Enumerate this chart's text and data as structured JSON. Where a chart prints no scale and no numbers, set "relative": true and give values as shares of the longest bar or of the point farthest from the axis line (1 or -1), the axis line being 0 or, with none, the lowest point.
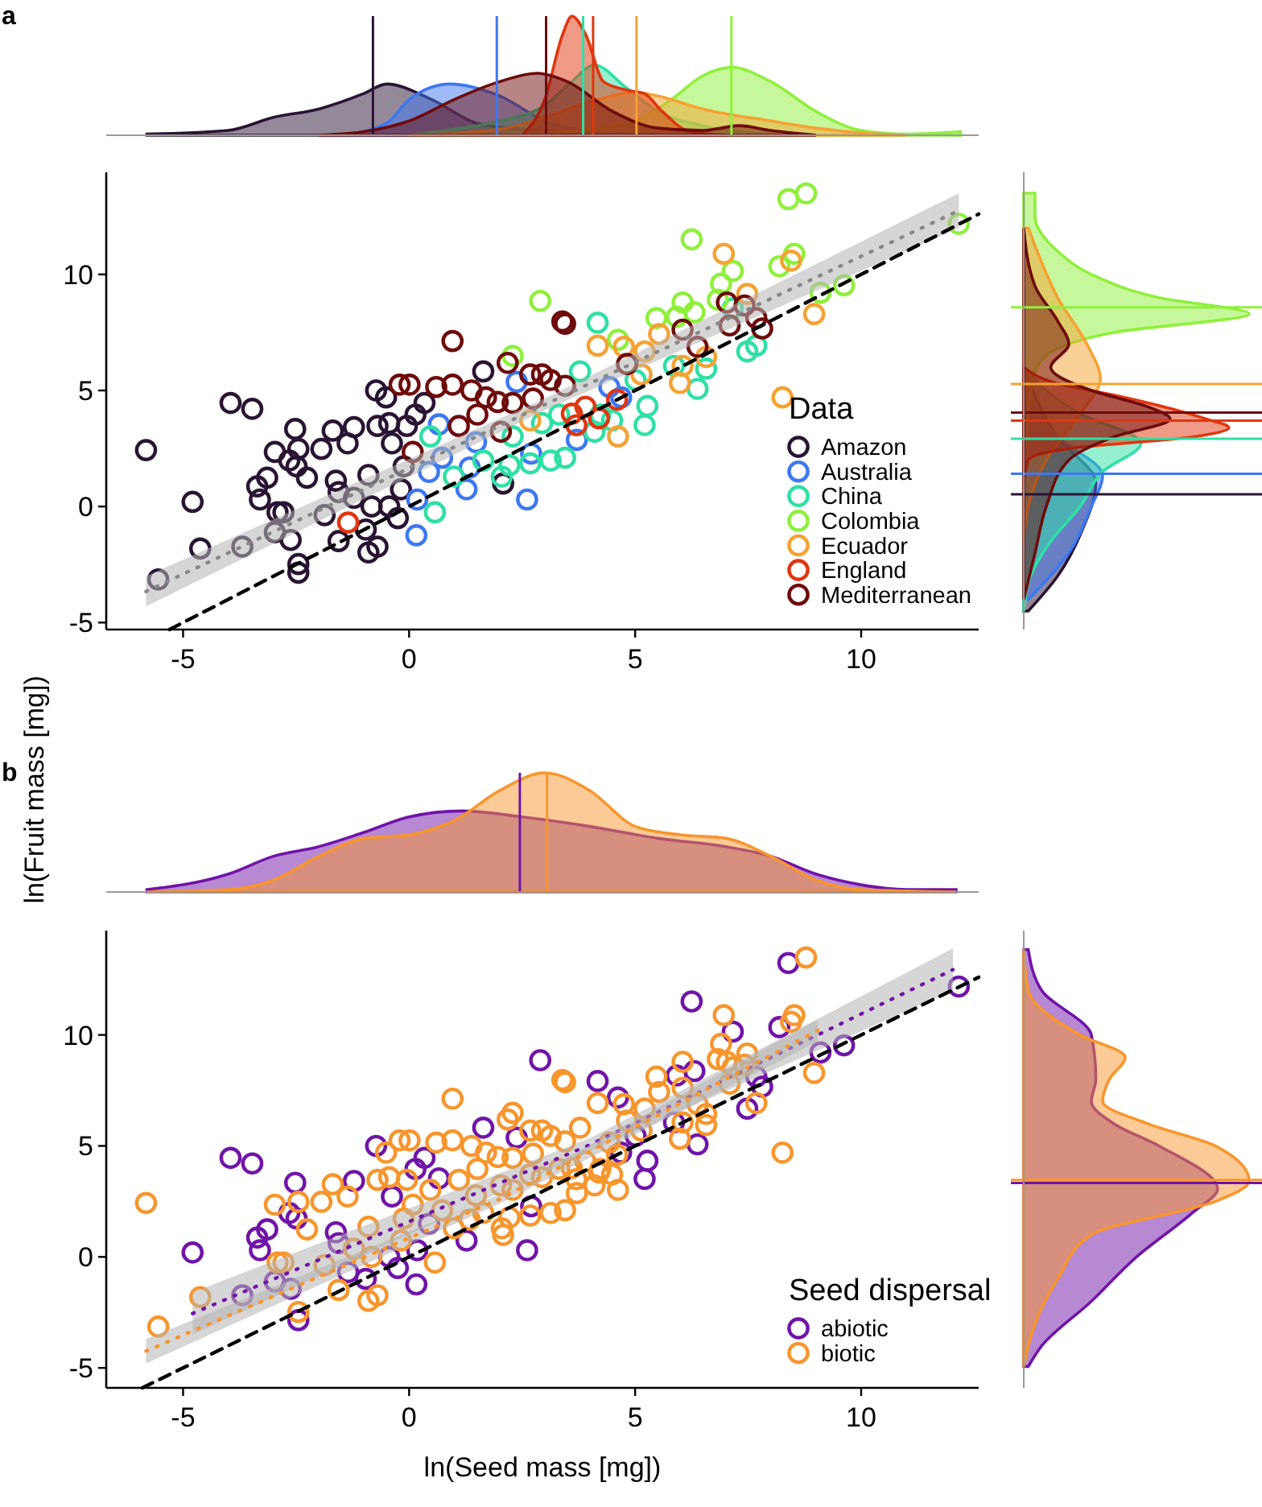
{
  "chart_data": [
    {
      "type": "area",
      "title": "a",
      "relative": true,
      "xlim": [
        -6.7,
        12.6
      ],
      "series": [
        {
          "color": "#2a1433",
          "x": [
            -5.8,
            -4,
            -3,
            -2,
            -1,
            -0.5,
            0.5,
            1.5,
            2.5,
            3.5,
            5,
            7
          ],
          "values": [
            0.01,
            0.04,
            0.15,
            0.22,
            0.35,
            0.43,
            0.3,
            0.1,
            0.05,
            0.03,
            0.01,
            0
          ]
        },
        {
          "color": "#3d78f0",
          "x": [
            -1.5,
            -0.5,
            0,
            0.9,
            2,
            3,
            4,
            5
          ],
          "values": [
            0,
            0.1,
            0.3,
            0.43,
            0.33,
            0.12,
            0.03,
            0
          ]
        },
        {
          "color": "#2fe0a5",
          "x": [
            0,
            1,
            2,
            3,
            3.6,
            4.1,
            4.8,
            5.5,
            6.5,
            7.5,
            8.5
          ],
          "values": [
            0,
            0.05,
            0.12,
            0.25,
            0.45,
            0.59,
            0.4,
            0.2,
            0.08,
            0.02,
            0
          ]
        },
        {
          "color": "#8ff03c",
          "x": [
            2,
            3,
            4,
            5,
            5.8,
            6.5,
            7.14,
            8,
            9,
            10,
            11,
            12.2
          ],
          "values": [
            0,
            0.02,
            0.05,
            0.12,
            0.3,
            0.5,
            0.57,
            0.45,
            0.2,
            0.04,
            0.01,
            0.03
          ]
        },
        {
          "color": "#f5a233",
          "x": [
            0,
            2,
            3,
            4,
            5,
            5.5,
            6.5,
            8,
            9,
            10,
            11
          ],
          "values": [
            0,
            0.05,
            0.15,
            0.28,
            0.36,
            0.33,
            0.22,
            0.12,
            0.06,
            0.02,
            0
          ]
        },
        {
          "color": "#e0360f",
          "x": [
            2.5,
            3,
            3.4,
            3.6,
            3.9,
            4.3,
            4.8,
            5.2,
            5.6,
            6.2,
            7
          ],
          "values": [
            0,
            0.3,
            0.85,
            1,
            0.85,
            0.45,
            0.38,
            0.35,
            0.2,
            0.03,
            0
          ]
        },
        {
          "color": "#6e0b0b",
          "x": [
            -2,
            -1,
            0,
            1,
            2,
            2.84,
            3.5,
            4.5,
            5.5,
            6.5,
            7.3,
            8,
            9
          ],
          "values": [
            0,
            0.03,
            0.12,
            0.3,
            0.45,
            0.52,
            0.45,
            0.2,
            0.06,
            0.04,
            0.08,
            0.04,
            0
          ]
        }
      ],
      "ref_lines": [
        {
          "axis": "x",
          "value": -0.8,
          "color": "#2a1433"
        },
        {
          "axis": "x",
          "value": 1.94,
          "color": "#3d78f0"
        },
        {
          "axis": "x",
          "value": 3.03,
          "color": "#6e0b0b"
        },
        {
          "axis": "x",
          "value": 3.85,
          "color": "#2fe0a5"
        },
        {
          "axis": "x",
          "value": 4.07,
          "color": "#e0360f"
        },
        {
          "axis": "x",
          "value": 5.03,
          "color": "#f5a233"
        },
        {
          "axis": "x",
          "value": 7.13,
          "color": "#8ff03c"
        }
      ]
    },
    {
      "type": "scatter",
      "ylabel": "ln(Fruit mass [mg])",
      "legend_title": "Data",
      "legend": "bottom right",
      "marker": "circle",
      "xlim": [
        -6.7,
        12.6
      ],
      "ylim": [
        -5.3,
        14.4
      ],
      "xticks": [
        -5,
        0,
        5,
        10
      ],
      "yticks": [
        -5,
        0,
        5,
        10
      ],
      "series": [
        {
          "name": "Amazon",
          "color": "#2a1433",
          "x": [
            -5.82,
            -4.79,
            -4.62,
            -5.55,
            -3.95,
            -3.47,
            -3.69,
            -3.36,
            -3.3,
            -3.14,
            -2.97,
            -2.91,
            -2.78,
            -2.97,
            -2.62,
            -2.52,
            -2.45,
            -2.49,
            -2.65,
            -2.45,
            -2.45,
            -2.26,
            -1.94,
            -1.87,
            -1.69,
            -1.62,
            -1.56,
            -1.36,
            -1.22,
            -1.56,
            -1.22,
            -0.96,
            -0.9,
            -0.9,
            -0.83,
            -0.73,
            -0.7,
            -0.51,
            -0.44,
            -0.38,
            -0.25,
            -0.18,
            -0.12,
            -0.05,
            0.14,
            0.34,
            1.64,
            2.08,
            -0.7,
            -0.44
          ],
          "values": [
            2.43,
            0.2,
            -1.81,
            -3.14,
            4.46,
            4.21,
            -1.73,
            0.87,
            0.3,
            1.24,
            2.35,
            -0.25,
            -0.25,
            -1.11,
            -1.44,
            3.34,
            2.48,
            1.73,
            1.98,
            -2.48,
            -2.85,
            1.24,
            2.48,
            -0.37,
            3.27,
            1.11,
            0.62,
            2.72,
            3.42,
            -1.49,
            0.37,
            -0.99,
            -1.98,
            1.36,
            0,
            5,
            3.47,
            4.7,
            3.59,
            2.72,
            -0.5,
            0.74,
            1.73,
            3.47,
            3.96,
            4.46,
            5.82,
            0.99,
            -1.73,
            0
          ]
        },
        {
          "name": "Australia",
          "color": "#3d78f0",
          "x": [
            0.16,
            0.18,
            0.44,
            0.66,
            0.73,
            1.27,
            1.34,
            1.48,
            2.38,
            2.61,
            2.7,
            3.71,
            4.43,
            4.69
          ],
          "values": [
            -1.24,
            0.3,
            1.49,
            3.54,
            2.1,
            0.74,
            1.68,
            2.77,
            5.37,
            0.3,
            2.28,
            2.87,
            5.15,
            4.7
          ]
        },
        {
          "name": "China",
          "color": "#2fe0a5",
          "x": [
            0.57,
            0.47,
            0.99,
            1.64,
            2.22,
            2.05,
            2.29,
            2.68,
            3.13,
            3.45,
            3.32,
            3.78,
            4.1,
            4.17,
            4.49,
            5.01,
            5.27,
            5.21,
            5.86,
            6.38,
            6.57,
            7.16,
            7.48,
            7.68,
            4.23,
            2.94
          ],
          "values": [
            -0.25,
            3.02,
            1.29,
            1.98,
            1.78,
            1.29,
            3.02,
            1.86,
            1.98,
            2.1,
            3.96,
            5.82,
            3.22,
            7.92,
            3.71,
            5.45,
            4.33,
            3.51,
            6.06,
            5.07,
            5.94,
            8.54,
            6.68,
            6.93,
            3.96,
            3.59
          ]
        },
        {
          "name": "Colombia",
          "color": "#8ff03c",
          "x": [
            2.29,
            2.9,
            4.62,
            5.47,
            5.92,
            6.25,
            6.31,
            6.83,
            6.9,
            7.16,
            8.19,
            8.52,
            8.39,
            8.78,
            9.1,
            9.62,
            12.16,
            6.05
          ],
          "values": [
            6.49,
            8.86,
            7.18,
            8.12,
            8.17,
            11.51,
            8.37,
            8.91,
            9.6,
            10.15,
            10.35,
            10.89,
            13.24,
            13.49,
            9.21,
            9.53,
            12.18,
            8.79
          ]
        },
        {
          "name": "Ecuador",
          "color": "#f5a233",
          "x": [
            2.68,
            4.17,
            4.62,
            4.75,
            5.21,
            5.53,
            5.99,
            6.05,
            6.96,
            7.48,
            8.26,
            8.45,
            8.96,
            6.57,
            5.14
          ],
          "values": [
            3.71,
            6.93,
            3.02,
            6.88,
            6.68,
            7.43,
            5.32,
            6.06,
            10.89,
            9.16,
            4.7,
            10.59,
            8.29,
            6.44,
            5.69
          ]
        },
        {
          "name": "England",
          "color": "#e0360f",
          "x": [
            -1.35,
            3.6,
            3.9,
            4.2,
            3.7,
            4.6
          ],
          "values": [
            -0.69,
            4,
            4.3,
            3.8,
            3.5,
            4.6
          ]
        },
        {
          "name": "Mediterranean",
          "color": "#6e0b0b",
          "x": [
            -0.21,
            0.01,
            0.08,
            0.96,
            0.6,
            0.96,
            1.38,
            1.1,
            1.7,
            1.96,
            2.18,
            2.29,
            2.68,
            2.94,
            2.74,
            3.13,
            3.45,
            3.39,
            3.45,
            4.82,
            6.05,
            6.38,
            7.03,
            7.09,
            7.42,
            7.68,
            7.81,
            2.03,
            1.51
          ],
          "values": [
            5.25,
            5.25,
            2.35,
            7.13,
            5.15,
            5.25,
            5,
            3.47,
            4.7,
            4.5,
            6.19,
            4.46,
            5.69,
            5.69,
            4.65,
            5.45,
            5.2,
            7.97,
            7.87,
            6.14,
            7.62,
            6.88,
            8.79,
            7.8,
            8.66,
            8.12,
            7.67,
            3.22,
            3.96
          ]
        },
        {
          "type": "line",
          "color": "#888888",
          "line_style": "dotted",
          "marker": "none",
          "x": [
            -5.82,
            3,
            12.16
          ],
          "values": [
            -3.66,
            4.39,
            12.75
          ],
          "lower": [
            -4.3,
            4.15,
            12
          ],
          "upper": [
            -3,
            4.65,
            13.5
          ]
        },
        {
          "type": "line",
          "color": "#000000",
          "line_style": "dashed",
          "marker": "none",
          "x": [
            -5.3,
            12.6
          ],
          "values": [
            -5.3,
            12.6
          ]
        }
      ]
    },
    {
      "type": "area",
      "orientation": "horizontal",
      "relative": true,
      "ylim": [
        -5.3,
        14.4
      ],
      "series": [
        {
          "color": "#2a1433",
          "x": [
            6,
            3,
            1,
            -1,
            -3,
            -4.5
          ],
          "values": [
            0,
            0.15,
            0.32,
            0.26,
            0.15,
            0.02
          ]
        },
        {
          "color": "#3d78f0",
          "x": [
            5,
            3,
            1.34,
            0,
            -2,
            -4
          ],
          "values": [
            0,
            0.15,
            0.35,
            0.3,
            0.2,
            0.02
          ]
        },
        {
          "color": "#2fe0a5",
          "x": [
            6,
            5,
            4,
            2.73,
            1.5,
            0,
            -1.5,
            -3,
            -4.5
          ],
          "values": [
            0,
            0.1,
            0.25,
            0.52,
            0.35,
            0.25,
            0.12,
            0.03,
            0
          ]
        },
        {
          "color": "#8ff03c",
          "x": [
            13.5,
            12.5,
            11,
            10,
            9,
            8.3,
            7.5,
            6.5,
            5.5,
            4,
            2
          ],
          "values": [
            0.05,
            0.05,
            0.15,
            0.3,
            0.6,
            1,
            0.4,
            0.1,
            0.04,
            0.02,
            0
          ]
        },
        {
          "color": "#f5a233",
          "x": [
            12,
            10.5,
            9,
            7,
            5.5,
            4,
            2,
            0,
            -1.5
          ],
          "values": [
            0.02,
            0.08,
            0.15,
            0.28,
            0.34,
            0.25,
            0.1,
            0.02,
            0
          ]
        },
        {
          "color": "#e0360f",
          "x": [
            6,
            5.3,
            4.8,
            3.8,
            3.4,
            3,
            2.5,
            2,
            1
          ],
          "values": [
            0,
            0.15,
            0.4,
            0.8,
            0.91,
            0.75,
            0.2,
            0.02,
            0
          ]
        },
        {
          "color": "#6e0b0b",
          "x": [
            12,
            9.5,
            8,
            7,
            6,
            5,
            4.3,
            3.77,
            3,
            2,
            0,
            -2,
            -4
          ],
          "values": [
            0,
            0.05,
            0.15,
            0.2,
            0.12,
            0.3,
            0.55,
            0.65,
            0.4,
            0.2,
            0.1,
            0.05,
            0
          ]
        }
      ],
      "ref_lines": [
        {
          "axis": "y",
          "value": 8.58,
          "color": "#8ff03c"
        },
        {
          "axis": "y",
          "value": 5.28,
          "color": "#f5a233"
        },
        {
          "axis": "y",
          "value": 4.05,
          "color": "#6e0b0b"
        },
        {
          "axis": "y",
          "value": 3.7,
          "color": "#e0360f"
        },
        {
          "axis": "y",
          "value": 2.92,
          "color": "#2fe0a5"
        },
        {
          "axis": "y",
          "value": 1.41,
          "color": "#3d78f0"
        },
        {
          "axis": "y",
          "value": 0.53,
          "color": "#2a1433"
        }
      ]
    },
    {
      "type": "area",
      "title": "b",
      "relative": true,
      "xlim": [
        -6.7,
        12.6
      ],
      "series": [
        {
          "color": "#7014a8",
          "x": [
            -5.8,
            -4,
            -3,
            -2,
            -1,
            0,
            1.17,
            2.5,
            4,
            5.5,
            7,
            8,
            9,
            10,
            11,
            12.1
          ],
          "values": [
            0.02,
            0.15,
            0.3,
            0.38,
            0.5,
            0.63,
            0.68,
            0.63,
            0.55,
            0.45,
            0.38,
            0.3,
            0.15,
            0.06,
            0.02,
            0.02
          ]
        },
        {
          "color": "#f7962d",
          "x": [
            -5.8,
            -4,
            -3,
            -2,
            -1,
            0,
            1,
            2,
            3,
            4,
            5,
            6,
            7,
            8,
            9,
            10,
            12.1
          ],
          "values": [
            0,
            0.02,
            0.1,
            0.3,
            0.45,
            0.48,
            0.6,
            0.85,
            1,
            0.85,
            0.55,
            0.48,
            0.45,
            0.3,
            0.1,
            0.02,
            0
          ]
        }
      ],
      "ref_lines": [
        {
          "axis": "x",
          "value": 2.45,
          "color": "#7014a8"
        },
        {
          "axis": "x",
          "value": 3.05,
          "color": "#f7962d"
        }
      ]
    },
    {
      "type": "scatter",
      "xlabel": "ln(Seed mass [mg])",
      "legend_title": "Seed dispersal",
      "legend": "bottom right",
      "marker": "circle",
      "xlim": [
        -6.7,
        12.6
      ],
      "ylim": [
        -5.9,
        14.7
      ],
      "xticks": [
        -5,
        0,
        5,
        10
      ],
      "yticks": [
        -5,
        0,
        5,
        10
      ],
      "series": [
        {
          "name": "abiotic",
          "color": "#7014a8",
          "x": [
            -4.79,
            -3.95,
            -3.47,
            -3.69,
            -3.36,
            -3.3,
            -3.14,
            -2.97,
            -2.62,
            -2.52,
            -2.49,
            -2.65,
            -2.45,
            -1.62,
            -1.56,
            -1.22,
            -0.96,
            -0.73,
            -0.38,
            -0.25,
            0.14,
            0.34,
            1.64,
            -0.44,
            0.16,
            0.18,
            0.44,
            0.66,
            1.27,
            2.38,
            2.61,
            2.7,
            4.69,
            4.17,
            5.01,
            5.27,
            5.21,
            5.86,
            6.38,
            7.48,
            2.9,
            4.62,
            5.92,
            6.25,
            6.31,
            7.16,
            8.19,
            8.39,
            9.1,
            9.62,
            12.16,
            -1.35,
            7.68,
            7.81
          ],
          "values": [
            0.2,
            4.46,
            4.21,
            -1.73,
            0.87,
            0.3,
            1.24,
            -1.11,
            -1.44,
            3.34,
            1.73,
            1.98,
            -2.85,
            1.11,
            0.62,
            3.42,
            -0.99,
            5,
            2.72,
            -0.5,
            3.96,
            4.46,
            5.82,
            0,
            -1.24,
            0.3,
            1.49,
            3.54,
            0.74,
            5.37,
            0.3,
            2.28,
            4.7,
            7.92,
            5.45,
            4.33,
            3.51,
            6.06,
            5.07,
            6.68,
            8.86,
            7.18,
            8.17,
            11.51,
            8.37,
            10.15,
            10.35,
            13.24,
            9.21,
            9.53,
            12.18,
            -0.69,
            8.12,
            7.67
          ]
        },
        {
          "name": "biotic",
          "color": "#f7962d",
          "x": [
            -5.82,
            -4.62,
            -5.55,
            -2.97,
            -2.91,
            -2.78,
            -2.45,
            -2.45,
            -2.26,
            -1.94,
            -1.87,
            -1.69,
            -1.36,
            -1.56,
            -1.22,
            -0.9,
            -0.9,
            -0.83,
            -0.7,
            -0.51,
            -0.44,
            -0.18,
            -0.12,
            -0.05,
            2.08,
            -0.7,
            0.73,
            1.34,
            1.48,
            3.71,
            4.43,
            0.57,
            0.47,
            0.99,
            1.64,
            2.22,
            2.05,
            2.29,
            2.68,
            3.13,
            3.45,
            3.32,
            3.78,
            4.1,
            4.49,
            6.57,
            7.16,
            7.68,
            4.23,
            2.94,
            2.29,
            5.47,
            6.83,
            6.9,
            8.52,
            8.78,
            6.05,
            2.68,
            4.17,
            4.62,
            4.75,
            5.21,
            5.53,
            5.99,
            6.05,
            6.96,
            7.48,
            8.26,
            8.45,
            8.96,
            6.57,
            5.14,
            3.6,
            3.9,
            4.2,
            3.7,
            4.6,
            -0.21,
            0.01,
            0.08,
            0.96,
            0.6,
            0.96,
            1.38,
            1.1,
            1.7,
            1.96,
            2.18,
            2.29,
            2.68,
            2.94,
            2.74,
            3.13,
            3.45,
            3.39,
            3.45,
            4.82,
            6.05,
            6.38,
            7.03,
            7.09,
            7.42,
            2.03,
            1.51
          ],
          "values": [
            2.43,
            -1.81,
            -3.14,
            2.35,
            -0.25,
            -0.25,
            2.48,
            -2.48,
            1.24,
            2.48,
            -0.37,
            3.27,
            2.72,
            -1.49,
            0.37,
            -1.98,
            1.36,
            0,
            3.47,
            4.7,
            3.59,
            0.74,
            1.73,
            3.47,
            0.99,
            -1.73,
            2.1,
            1.68,
            2.77,
            2.87,
            5.15,
            -0.25,
            3.02,
            1.29,
            1.98,
            1.78,
            1.29,
            3.02,
            1.86,
            1.98,
            2.1,
            3.96,
            5.82,
            3.22,
            3.71,
            5.94,
            8.54,
            6.93,
            3.96,
            3.59,
            6.49,
            8.12,
            8.91,
            9.6,
            10.89,
            13.49,
            8.79,
            3.71,
            6.93,
            3.02,
            6.88,
            6.68,
            7.43,
            5.32,
            6.06,
            10.89,
            9.16,
            4.7,
            10.59,
            8.29,
            6.44,
            5.69,
            4,
            4.3,
            3.8,
            3.5,
            4.6,
            5.25,
            5.25,
            2.35,
            7.13,
            5.15,
            5.25,
            5,
            3.47,
            4.7,
            4.5,
            6.19,
            4.46,
            5.69,
            5.69,
            4.65,
            5.45,
            5.2,
            7.97,
            7.87,
            6.14,
            7.62,
            6.88,
            8.79,
            7.8,
            8.66,
            3.22,
            3.96
          ]
        },
        {
          "type": "line",
          "color": "#7014a8",
          "line_style": "dotted",
          "marker": "none",
          "x": [
            -4.79,
            4,
            12.03
          ],
          "values": [
            -2.55,
            5.05,
            12.94
          ],
          "lower": [
            -3.5,
            4.75,
            12
          ],
          "upper": [
            -1.6,
            5.35,
            13.9
          ]
        },
        {
          "type": "line",
          "color": "#f7962d",
          "line_style": "dotted",
          "marker": "none",
          "x": [
            -5.82,
            2,
            9.04
          ],
          "values": [
            -4.24,
            2.6,
            10.21
          ],
          "lower": [
            -4.8,
            2.4,
            9.7
          ],
          "upper": [
            -3.7,
            2.8,
            10.7
          ]
        },
        {
          "type": "line",
          "color": "#000000",
          "line_style": "dashed",
          "marker": "none",
          "x": [
            -5.9,
            12.6
          ],
          "values": [
            -5.9,
            12.6
          ]
        }
      ]
    },
    {
      "type": "area",
      "orientation": "horizontal",
      "relative": true,
      "ylim": [
        -5.9,
        14.7
      ],
      "series": [
        {
          "color": "#7014a8",
          "x": [
            13.85,
            12,
            10,
            8,
            7,
            6,
            5,
            3.06,
            2,
            0,
            -2,
            -4,
            -4.94
          ],
          "values": [
            0.02,
            0.08,
            0.3,
            0.32,
            0.3,
            0.4,
            0.6,
            0.86,
            0.75,
            0.5,
            0.3,
            0.08,
            0.02
          ]
        },
        {
          "color": "#f7962d",
          "x": [
            13.85,
            12,
            10,
            9,
            8,
            7,
            6,
            5,
            3.42,
            2.5,
            1,
            -1,
            -3,
            -4.94
          ],
          "values": [
            0,
            0.02,
            0.25,
            0.45,
            0.38,
            0.35,
            0.55,
            0.85,
            1,
            0.85,
            0.3,
            0.15,
            0.05,
            0
          ]
        }
      ],
      "ref_lines": [
        {
          "axis": "y",
          "value": 3.47,
          "color": "#f7962d"
        },
        {
          "axis": "y",
          "value": 3.33,
          "color": "#7014a8"
        }
      ]
    }
  ]
}
